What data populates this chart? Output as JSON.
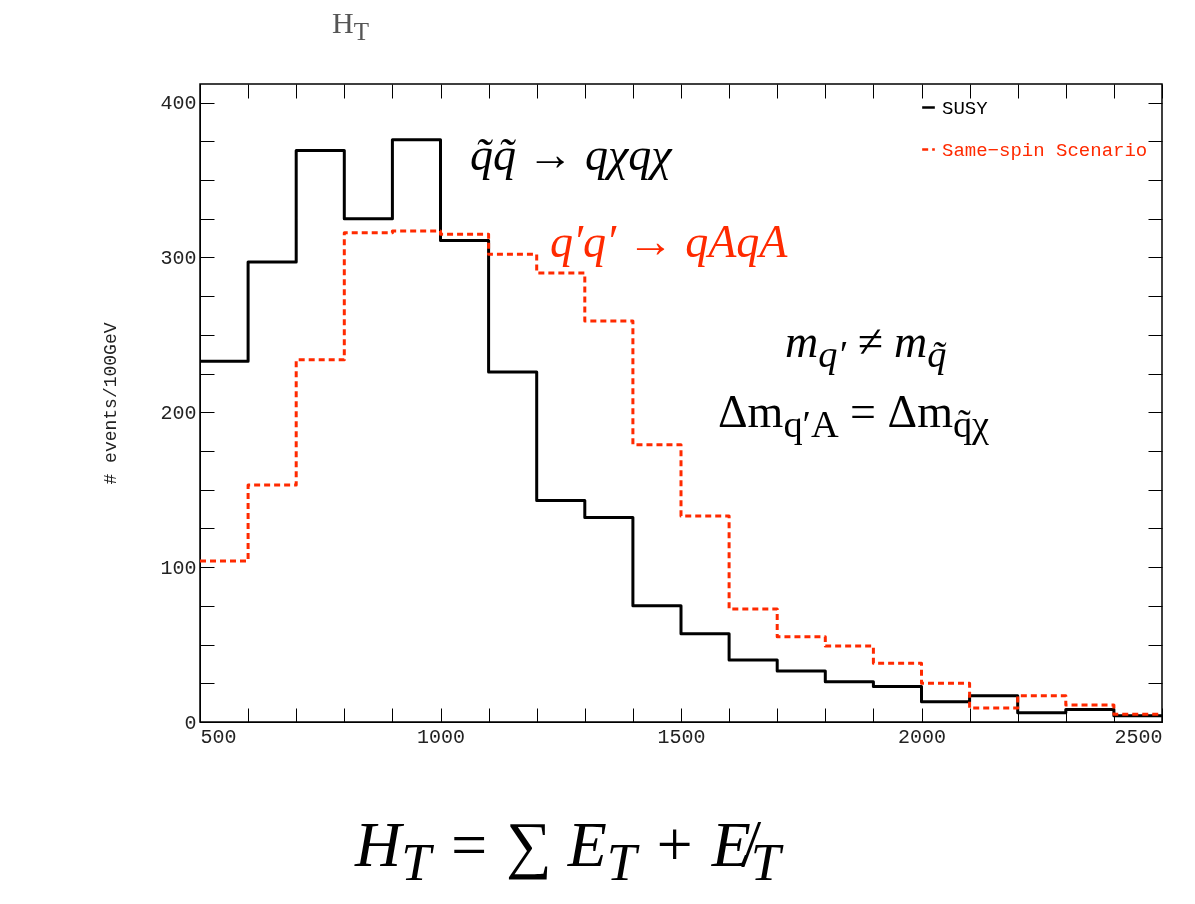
{
  "chart_data": {
    "type": "histogram",
    "title": "H$_{T}$",
    "xlabel": "H$_{T}$ = ∑ E$_{T}$ + E̸$_{T}$",
    "ylabel": "# events/100GeV",
    "bins": [
      500,
      600,
      700,
      800,
      900,
      1000,
      1100,
      1200,
      1300,
      1400,
      1500,
      1600,
      1700,
      1800,
      1900,
      2000,
      2100,
      2200,
      2300,
      2400,
      2500
    ],
    "series": [
      {
        "name": "SUSY",
        "color": "#000000",
        "line_style": "solid",
        "values": [
          233,
          297,
          369,
          325,
          376,
          311,
          226,
          143,
          132,
          75,
          57,
          40,
          33,
          26,
          23,
          13,
          17,
          6,
          8,
          4
        ]
      },
      {
        "name": "Same−spin Scenario",
        "color": "#ff2a00",
        "line_style": "dashed",
        "values": [
          104,
          153,
          234,
          316,
          317,
          315,
          302,
          290,
          259,
          179,
          133,
          73,
          55,
          49,
          38,
          25,
          9,
          17,
          11,
          5
        ]
      }
    ],
    "xlim": [
      500,
      2500
    ],
    "ylim": [
      0,
      412
    ],
    "xticks": [
      500,
      {
        "value": 600,
        "label": null
      },
      {
        "value": 700,
        "label": null
      },
      {
        "value": 800,
        "label": null
      },
      {
        "value": 900,
        "label": null
      },
      1000,
      {
        "value": 1100,
        "label": null
      },
      {
        "value": 1200,
        "label": null
      },
      {
        "value": 1300,
        "label": null
      },
      {
        "value": 1400,
        "label": null
      },
      1500,
      {
        "value": 1600,
        "label": null
      },
      {
        "value": 1700,
        "label": null
      },
      {
        "value": 1800,
        "label": null
      },
      {
        "value": 1900,
        "label": null
      },
      2000,
      {
        "value": 2100,
        "label": null
      },
      {
        "value": 2200,
        "label": null
      },
      {
        "value": 2300,
        "label": null
      },
      {
        "value": 2400,
        "label": null
      },
      2500
    ],
    "yticks": [
      0,
      {
        "value": 25,
        "label": null
      },
      {
        "value": 50,
        "label": null
      },
      {
        "value": 75,
        "label": null
      },
      100,
      {
        "value": 125,
        "label": null
      },
      {
        "value": 150,
        "label": null
      },
      {
        "value": 175,
        "label": null
      },
      200,
      {
        "value": 225,
        "label": null
      },
      {
        "value": 250,
        "label": null
      },
      {
        "value": 275,
        "label": null
      },
      300,
      {
        "value": 325,
        "label": null
      },
      {
        "value": 350,
        "label": null
      },
      {
        "value": 375,
        "label": null
      },
      400
    ],
    "grid": false,
    "legend": "top right",
    "annotations": [
      "q̃q̃ → qχqχ",
      "q′q′ → qAqA",
      "m$_{q′}$ ≠ m$_{q̃}$",
      "Δm$_{q′A}$ = Δm$_{q̃χ}$"
    ]
  }
}
